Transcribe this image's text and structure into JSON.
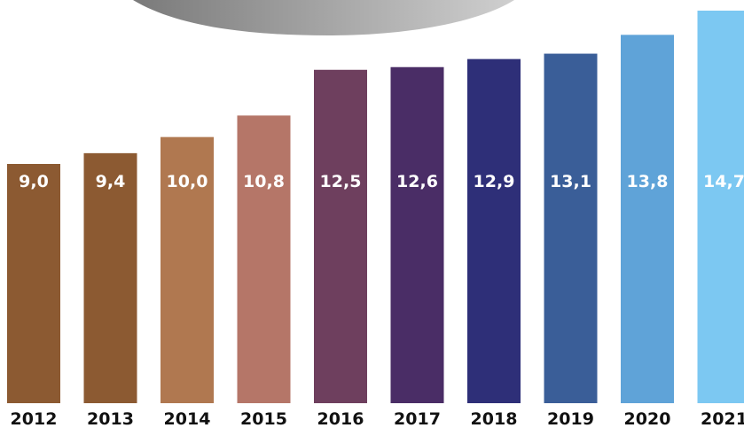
{
  "chart_data": {
    "type": "bar",
    "categories": [
      "2012",
      "2013",
      "2014",
      "2015",
      "2016",
      "2017",
      "2018",
      "2019",
      "2020",
      "2021"
    ],
    "values": [
      9.0,
      9.4,
      10.0,
      10.8,
      12.5,
      12.6,
      12.9,
      13.1,
      13.8,
      14.7
    ],
    "value_labels": [
      "9,0",
      "9,4",
      "10,0",
      "10,8",
      "12,5",
      "12,6",
      "12,9",
      "13,1",
      "13,8",
      "14,7"
    ],
    "title": "",
    "xlabel": "",
    "ylabel": "",
    "grid": false,
    "colors": [
      "#8c5a32",
      "#8c5a32",
      "#b07850",
      "#b57668",
      "#6e3f5e",
      "#4a2d66",
      "#2e2f78",
      "#3a5e98",
      "#5fa3d8",
      "#7cc8f2"
    ]
  },
  "decoration": {
    "ellipse_colors": [
      "#7a7a7a",
      "#cfcfcf"
    ]
  }
}
